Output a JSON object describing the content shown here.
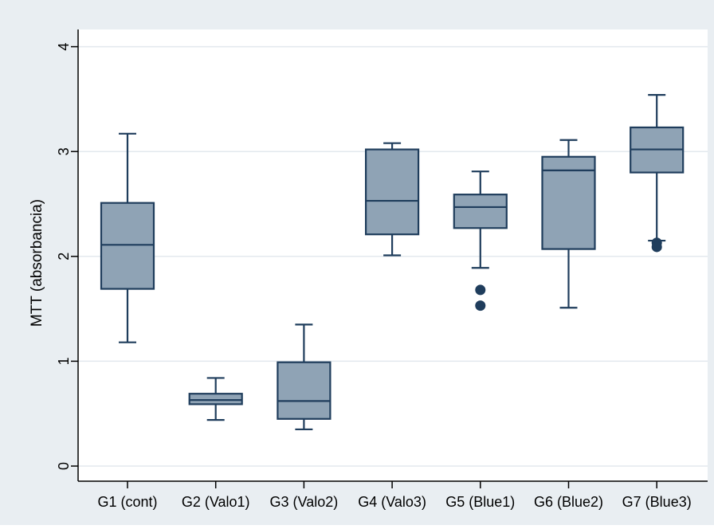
{
  "chart_data": {
    "type": "box",
    "title": "",
    "xlabel": "",
    "ylabel": "MTT (absorbancia)",
    "ylim": [
      0,
      4.2
    ],
    "yticks": [
      0,
      1,
      2,
      3,
      4
    ],
    "grid": true,
    "legend": "none",
    "categories": [
      "G1 (cont)",
      "G2 (Valo1)",
      "G3 (Valo2)",
      "G4 (Valo3)",
      "G5 (Blue1)",
      "G6 (Blue2)",
      "G7 (Blue3)"
    ],
    "boxes": [
      {
        "category": "G1 (cont)",
        "whisker_low": 1.18,
        "q1": 1.69,
        "median": 2.11,
        "q3": 2.51,
        "whisker_high": 3.17,
        "outliers": []
      },
      {
        "category": "G2 (Valo1)",
        "whisker_low": 0.44,
        "q1": 0.59,
        "median": 0.63,
        "q3": 0.69,
        "whisker_high": 0.84,
        "outliers": []
      },
      {
        "category": "G3 (Valo2)",
        "whisker_low": 0.35,
        "q1": 0.45,
        "median": 0.62,
        "q3": 0.99,
        "whisker_high": 1.35,
        "outliers": []
      },
      {
        "category": "G4 (Valo3)",
        "whisker_low": 2.01,
        "q1": 2.21,
        "median": 2.53,
        "q3": 3.02,
        "whisker_high": 3.08,
        "outliers": []
      },
      {
        "category": "G5 (Blue1)",
        "whisker_low": 1.89,
        "q1": 2.27,
        "median": 2.47,
        "q3": 2.59,
        "whisker_high": 2.81,
        "outliers": [
          1.68,
          1.53
        ]
      },
      {
        "category": "G6 (Blue2)",
        "whisker_low": 1.51,
        "q1": 2.07,
        "median": 2.82,
        "q3": 2.95,
        "whisker_high": 3.11,
        "outliers": []
      },
      {
        "category": "G7 (Blue3)",
        "whisker_low": 2.15,
        "q1": 2.8,
        "median": 3.02,
        "q3": 3.23,
        "whisker_high": 3.54,
        "outliers": [
          2.13,
          2.09
        ]
      }
    ],
    "colors": {
      "outer_background": "#e9eef2",
      "plot_background": "#ffffff",
      "box_fill": "#8fa3b5",
      "box_stroke": "#1f3d5c",
      "outlier": "#1f3d5c",
      "grid": "#e3e9ee",
      "axis": "#000000"
    }
  }
}
